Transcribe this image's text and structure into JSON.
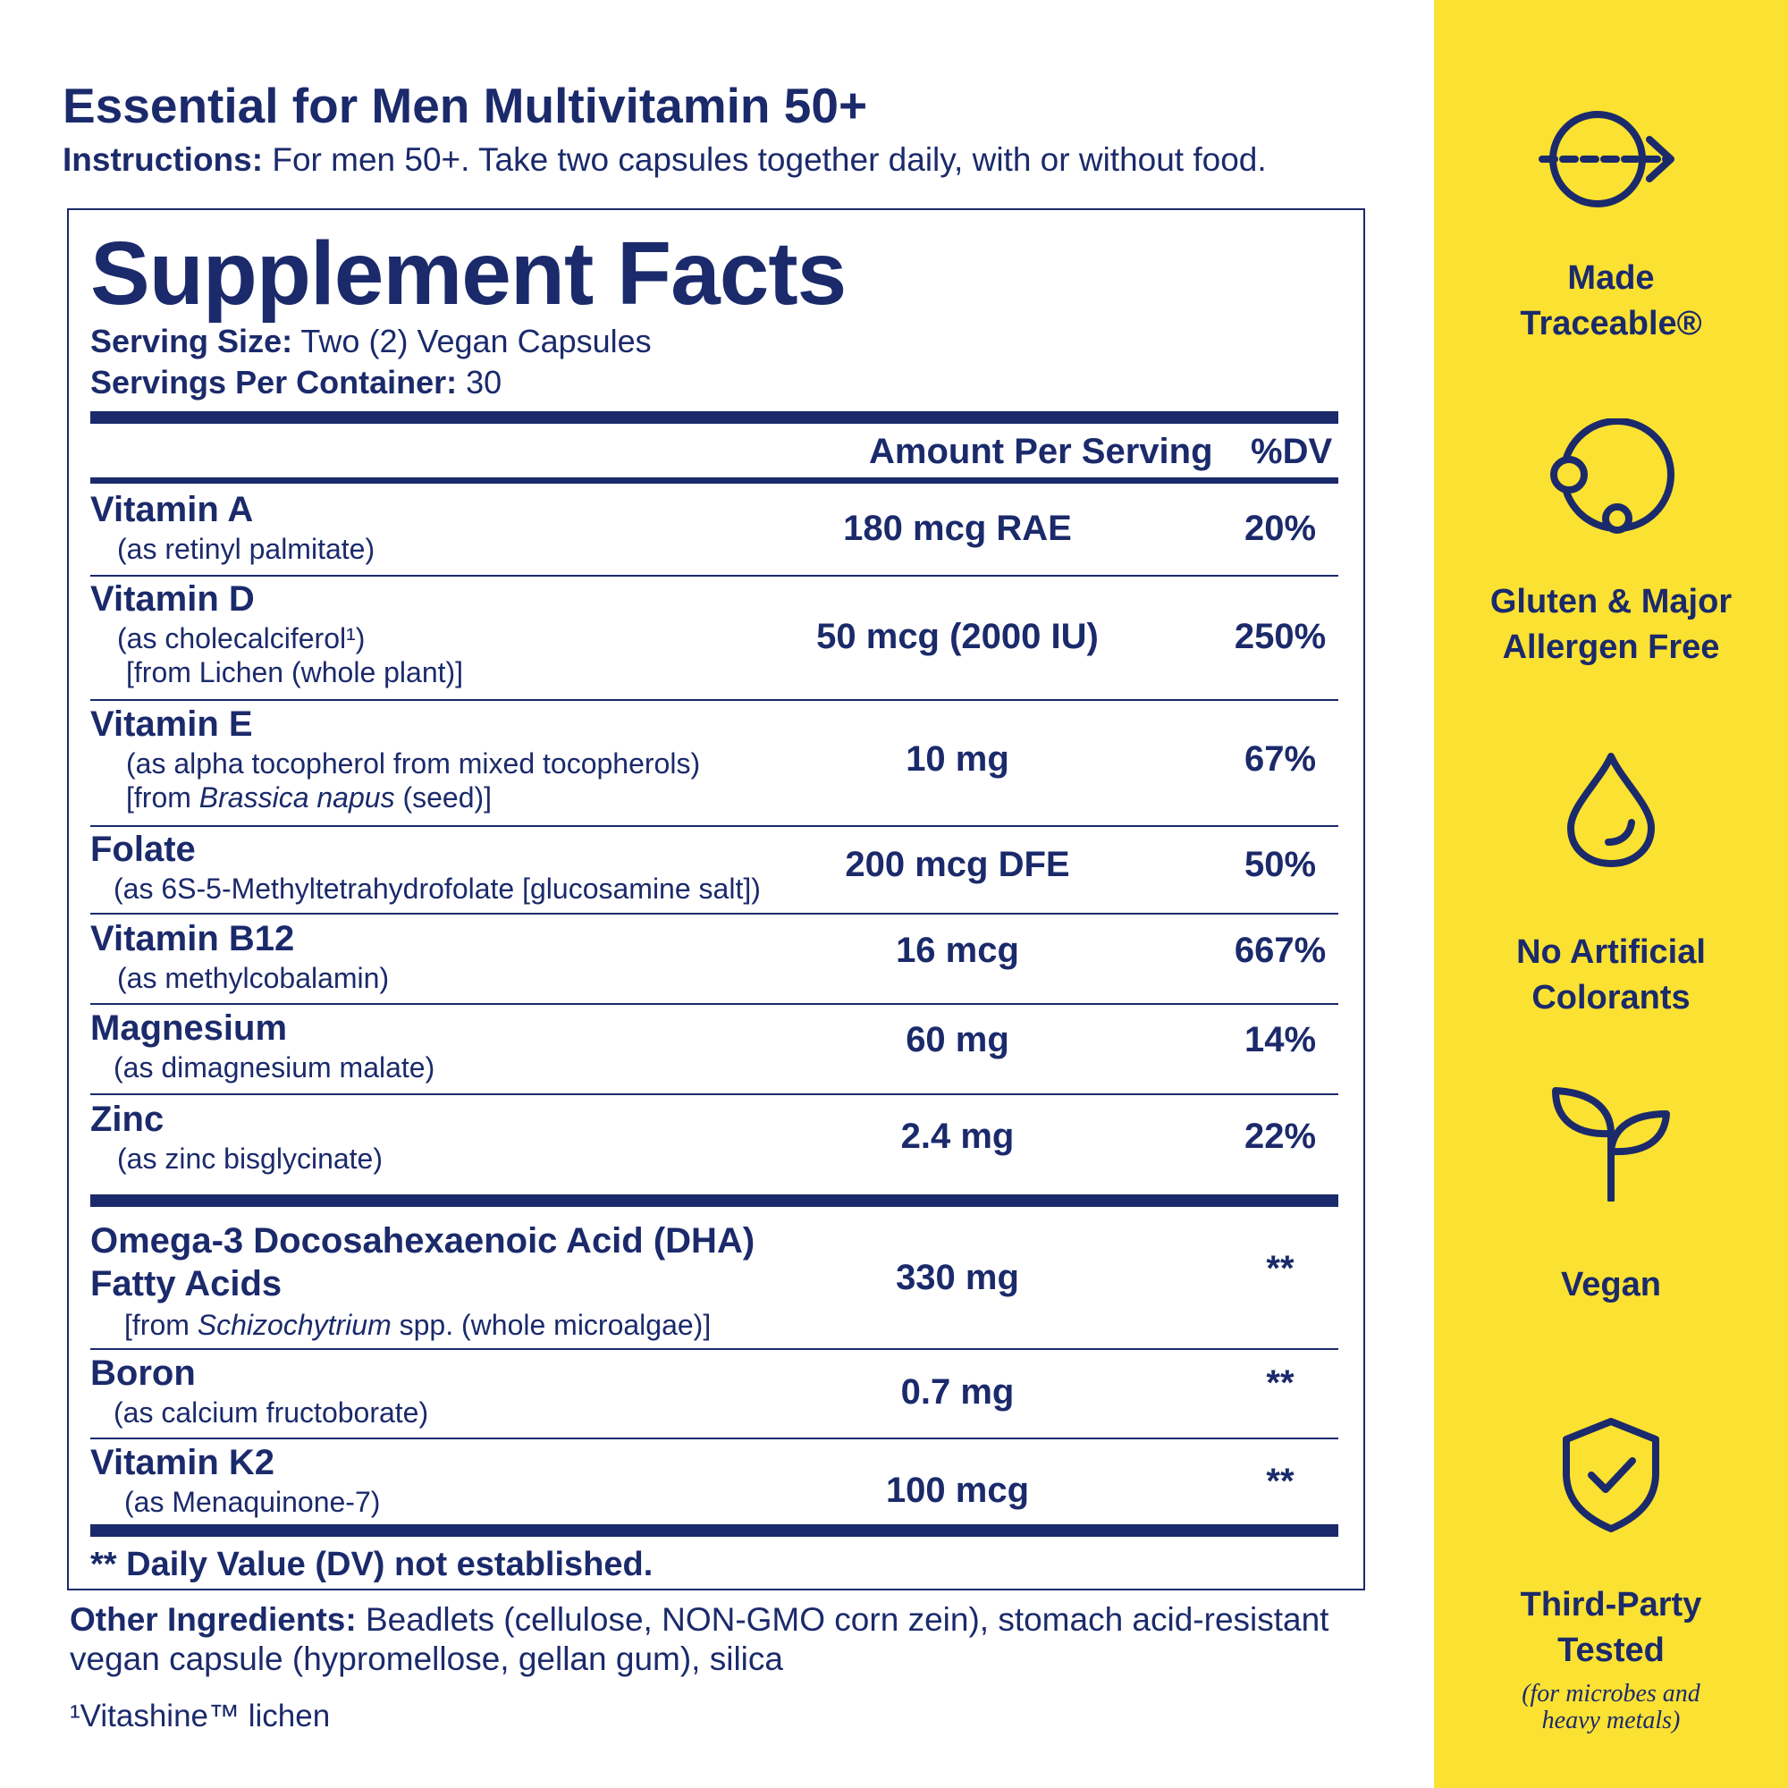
{
  "header": {
    "title": "Essential for Men Multivitamin 50+",
    "instructions_label": "Instructions:",
    "instructions_text": " For men 50+. Take two capsules together daily, with or without food."
  },
  "facts": {
    "heading": "Supplement Facts",
    "serving_size_label": "Serving Size:",
    "serving_size_value": " Two (2) Vegan Capsules",
    "servings_per_container_label": "Servings Per Container:",
    "servings_per_container_value": " 30",
    "col_amount": "Amount Per Serving",
    "col_dv": "%DV",
    "nutrients": [
      {
        "name": "Vitamin A",
        "sub1": "(as retinyl palmitate)",
        "amount": "180 mcg RAE",
        "dv": "20%"
      },
      {
        "name": "Vitamin D",
        "sub1": "(as cholecalciferol¹)",
        "sub2": "[from Lichen (whole plant)]",
        "amount": "50 mcg (2000 IU)",
        "dv": "250%"
      },
      {
        "name": "Vitamin E",
        "sub1": "(as alpha tocopherol from mixed tocopherols)",
        "sub2_pre": "[from ",
        "sub2_italic": "Brassica napus",
        "sub2_post": " (seed)]",
        "amount": "10 mg",
        "dv": "67%"
      },
      {
        "name": "Folate",
        "sub1": "(as 6S-5-Methyltetrahydrofolate [glucosamine salt])",
        "amount": "200 mcg DFE",
        "dv": "50%"
      },
      {
        "name": "Vitamin B12",
        "sub1": "(as methylcobalamin)",
        "amount": "16 mcg",
        "dv": "667%"
      },
      {
        "name": "Magnesium",
        "sub1": "(as dimagnesium malate)",
        "amount": "60 mg",
        "dv": "14%"
      },
      {
        "name": "Zinc",
        "sub1": "(as zinc bisglycinate)",
        "amount": "2.4 mg",
        "dv": "22%"
      }
    ],
    "others": [
      {
        "name": "Omega-3 Docosahexaenoic Acid (DHA)",
        "name2": "Fatty Acids",
        "sub_pre": "[from ",
        "sub_italic": "Schizochytrium",
        "sub_post": " spp. (whole microalgae)]",
        "amount": "330 mg",
        "dv": "**"
      },
      {
        "name": "Boron",
        "sub1": "(as calcium fructoborate)",
        "amount": "0.7 mg",
        "dv": "**"
      },
      {
        "name": "Vitamin K2",
        "sub1": "(as Menaquinone-7)",
        "amount": "100 mcg",
        "dv": "**"
      }
    ],
    "dv_footnote": "** Daily Value (DV) not established."
  },
  "other_ingredients": {
    "label": "Other Ingredients:",
    "text": " Beadlets (cellulose, NON-GMO corn zein), stomach acid-resistant vegan capsule (hypromellose, gellan gum), silica"
  },
  "footnote": "¹Vitashine™ lichen",
  "badges": [
    {
      "icon": "traceable-arrow-icon",
      "line1": "Made",
      "line2": "Traceable®"
    },
    {
      "icon": "allergen-free-icon",
      "line1": "Gluten & Major",
      "line2": "Allergen Free"
    },
    {
      "icon": "droplet-icon",
      "line1": "No Artificial",
      "line2": "Colorants"
    },
    {
      "icon": "sprout-icon",
      "line1": "Vegan"
    },
    {
      "icon": "shield-check-icon",
      "line1": "Third-Party",
      "line2": "Tested",
      "note1": "(for microbes and",
      "note2": "heavy metals)"
    }
  ],
  "colors": {
    "navy": "#1b2a6b",
    "yellow": "#fbe131"
  }
}
